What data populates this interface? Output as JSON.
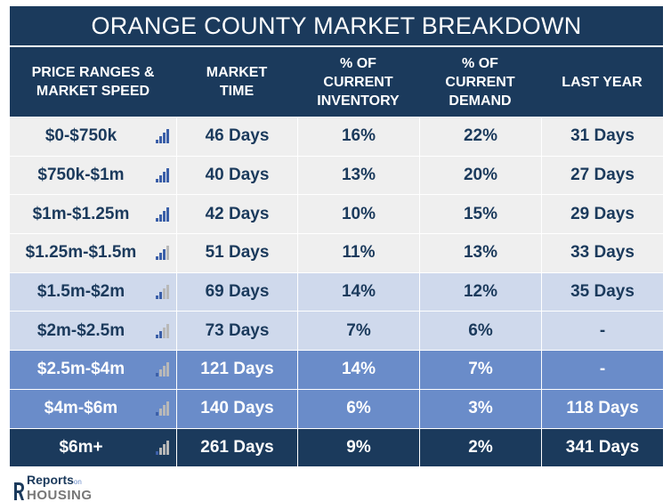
{
  "title": "ORANGE COUNTY MARKET BREAKDOWN",
  "headers": [
    "PRICE RANGES &\nMARKET SPEED",
    "MARKET\nTIME",
    "% OF\nCURRENT\nINVENTORY",
    "% OF\nCURRENT\nDEMAND",
    "LAST YEAR"
  ],
  "rows": [
    {
      "range": "$0-$750k",
      "market_time": "46 Days",
      "inventory": "16%",
      "demand": "22%",
      "last_year": "31 Days",
      "speed_bars": 4,
      "tier": 1
    },
    {
      "range": "$750k-$1m",
      "market_time": "40 Days",
      "inventory": "13%",
      "demand": "20%",
      "last_year": "27 Days",
      "speed_bars": 4,
      "tier": 1
    },
    {
      "range": "$1m-$1.25m",
      "market_time": "42 Days",
      "inventory": "10%",
      "demand": "15%",
      "last_year": "29 Days",
      "speed_bars": 4,
      "tier": 1
    },
    {
      "range": "$1.25m-$1.5m",
      "market_time": "51 Days",
      "inventory": "11%",
      "demand": "13%",
      "last_year": "33 Days",
      "speed_bars": 3,
      "tier": 1
    },
    {
      "range": "$1.5m-$2m",
      "market_time": "69 Days",
      "inventory": "14%",
      "demand": "12%",
      "last_year": "35 Days",
      "speed_bars": 2,
      "tier": 2
    },
    {
      "range": "$2m-$2.5m",
      "market_time": "73 Days",
      "inventory": "7%",
      "demand": "6%",
      "last_year": "-",
      "speed_bars": 2,
      "tier": 2
    },
    {
      "range": "$2.5m-$4m",
      "market_time": "121 Days",
      "inventory": "14%",
      "demand": "7%",
      "last_year": "-",
      "speed_bars": 1,
      "tier": 3
    },
    {
      "range": "$4m-$6m",
      "market_time": "140 Days",
      "inventory": "6%",
      "demand": "3%",
      "last_year": "118 Days",
      "speed_bars": 1,
      "tier": 3
    },
    {
      "range": "$6m+",
      "market_time": "261 Days",
      "inventory": "9%",
      "demand": "2%",
      "last_year": "341 Days",
      "speed_bars": 1,
      "tier": 4
    }
  ],
  "colors": {
    "navy": "#1b3a5c",
    "bar_active": "#3b5fa8",
    "bar_inactive": "#b8b8b8"
  },
  "logo": {
    "top": "Reports",
    "on": "on",
    "bottom": "HOUSING"
  }
}
